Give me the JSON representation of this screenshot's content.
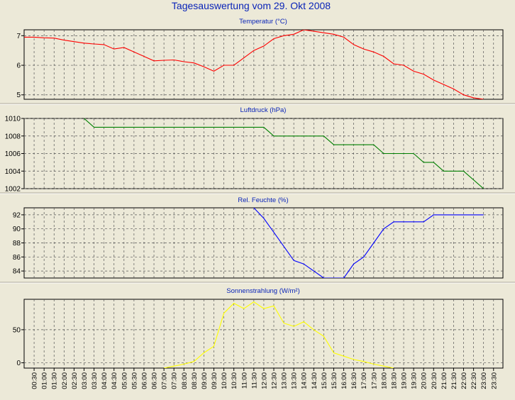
{
  "title": "Tagesauswertung vom 29. Okt 2008",
  "chart_data": [
    {
      "type": "line",
      "title": "Temperatur (°C)",
      "color": "#ff0000",
      "ylim": [
        4.85,
        7.2
      ],
      "yticks": [
        5,
        6,
        7
      ],
      "x": [
        "00:00",
        "00:30",
        "01:00",
        "01:30",
        "02:00",
        "02:30",
        "03:00",
        "03:30",
        "04:00",
        "04:30",
        "05:00",
        "05:30",
        "06:00",
        "06:30",
        "07:00",
        "07:30",
        "08:00",
        "08:30",
        "09:00",
        "09:30",
        "10:00",
        "10:30",
        "11:00",
        "11:30",
        "12:00",
        "12:30",
        "13:00",
        "13:30",
        "14:00",
        "14:30",
        "15:00",
        "15:30",
        "16:00",
        "16:30",
        "17:00",
        "17:30",
        "18:00",
        "18:30",
        "19:00",
        "19:30",
        "20:00",
        "20:30",
        "21:00",
        "21:30",
        "22:00",
        "22:30",
        "23:00"
      ],
      "values": [
        6.95,
        6.95,
        6.93,
        6.92,
        6.85,
        6.8,
        6.75,
        6.72,
        6.7,
        6.55,
        6.6,
        6.45,
        6.3,
        6.15,
        6.17,
        6.18,
        6.12,
        6.08,
        5.95,
        5.8,
        6.0,
        6.0,
        6.25,
        6.5,
        6.65,
        6.9,
        7.0,
        7.05,
        7.2,
        7.15,
        7.1,
        7.05,
        6.95,
        6.7,
        6.55,
        6.45,
        6.3,
        6.05,
        6.0,
        5.8,
        5.7,
        5.5,
        5.35,
        5.2,
        5.0,
        4.9,
        4.85
      ],
      "grid": true
    },
    {
      "type": "line",
      "title": "Luftdruck (hPa)",
      "color": "#008000",
      "ylim": [
        1002,
        1010
      ],
      "yticks": [
        1002,
        1004,
        1006,
        1008,
        1010
      ],
      "x": [
        "03:00",
        "03:30",
        "12:00",
        "12:30",
        "15:30",
        "16:00",
        "18:30",
        "19:00",
        "20:30",
        "21:00",
        "22:30",
        "23:00"
      ],
      "values": [
        1010,
        1009,
        1009,
        1008,
        1008,
        1007,
        1007,
        1006,
        1006,
        1005,
        1004,
        1002
      ],
      "steps": [
        [
          "03:00",
          1010
        ],
        [
          "03:30",
          1009
        ],
        [
          "12:00",
          1009
        ],
        [
          "12:30",
          1008
        ],
        [
          "14:30",
          1008
        ],
        [
          "15:00",
          1008
        ],
        [
          "15:30",
          1007
        ],
        [
          "17:30",
          1007
        ],
        [
          "18:00",
          1006
        ],
        [
          "19:30",
          1006
        ],
        [
          "20:00",
          1005
        ],
        [
          "20:30",
          1005
        ],
        [
          "21:00",
          1004
        ],
        [
          "22:00",
          1004
        ],
        [
          "23:00",
          1002
        ]
      ],
      "grid": true
    },
    {
      "type": "line",
      "title": "Rel. Feuchte (%)",
      "color": "#0000ff",
      "ylim": [
        83,
        93
      ],
      "yticks": [
        84,
        86,
        88,
        90,
        92
      ],
      "points": [
        [
          "11:30",
          93
        ],
        [
          "12:00",
          91.5
        ],
        [
          "12:30",
          89.5
        ],
        [
          "13:00",
          87.5
        ],
        [
          "13:30",
          85.5
        ],
        [
          "14:00",
          85
        ],
        [
          "14:30",
          84
        ],
        [
          "15:00",
          83
        ],
        [
          "15:30",
          83
        ],
        [
          "16:00",
          83
        ],
        [
          "16:30",
          85
        ],
        [
          "17:00",
          86
        ],
        [
          "17:30",
          88
        ],
        [
          "18:00",
          90
        ],
        [
          "18:30",
          91
        ],
        [
          "19:00",
          91
        ],
        [
          "19:30",
          91
        ],
        [
          "20:00",
          91
        ],
        [
          "20:30",
          92
        ],
        [
          "21:00",
          92
        ],
        [
          "21:30",
          92
        ],
        [
          "22:00",
          92
        ],
        [
          "22:30",
          92
        ],
        [
          "23:00",
          92
        ]
      ],
      "grid": true
    },
    {
      "type": "line",
      "title": "Sonnenstrahlung (W/m²)",
      "color": "#ffff00",
      "ylim": [
        -8,
        96
      ],
      "yticks": [
        0,
        50
      ],
      "points": [
        [
          "07:00",
          -8
        ],
        [
          "07:30",
          -5
        ],
        [
          "08:00",
          -2
        ],
        [
          "08:30",
          2
        ],
        [
          "09:00",
          15
        ],
        [
          "09:30",
          25
        ],
        [
          "10:00",
          75
        ],
        [
          "10:30",
          90
        ],
        [
          "11:00",
          82
        ],
        [
          "11:30",
          92
        ],
        [
          "12:00",
          82
        ],
        [
          "12:30",
          86
        ],
        [
          "13:00",
          60
        ],
        [
          "13:30",
          55
        ],
        [
          "14:00",
          62
        ],
        [
          "14:30",
          50
        ],
        [
          "15:00",
          40
        ],
        [
          "15:30",
          15
        ],
        [
          "16:00",
          10
        ],
        [
          "16:30",
          5
        ],
        [
          "17:00",
          2
        ],
        [
          "17:30",
          -2
        ],
        [
          "18:00",
          -5
        ],
        [
          "18:30",
          -8
        ]
      ],
      "grid": true
    }
  ],
  "x_ticks": [
    "00:30",
    "01:00",
    "01:30",
    "02:00",
    "02:30",
    "03:00",
    "03:30",
    "04:00",
    "04:30",
    "05:00",
    "05:30",
    "06:00",
    "06:30",
    "07:00",
    "07:30",
    "08:00",
    "08:30",
    "09:00",
    "09:30",
    "10:00",
    "10:30",
    "11:00",
    "11:30",
    "12:00",
    "12:30",
    "13:00",
    "13:30",
    "14:00",
    "14:30",
    "15:00",
    "15:30",
    "16:00",
    "16:30",
    "17:00",
    "17:30",
    "18:00",
    "18:30",
    "19:00",
    "19:30",
    "20:00",
    "20:30",
    "21:00",
    "21:30",
    "22:00",
    "22:30",
    "23:00",
    "23:30"
  ]
}
